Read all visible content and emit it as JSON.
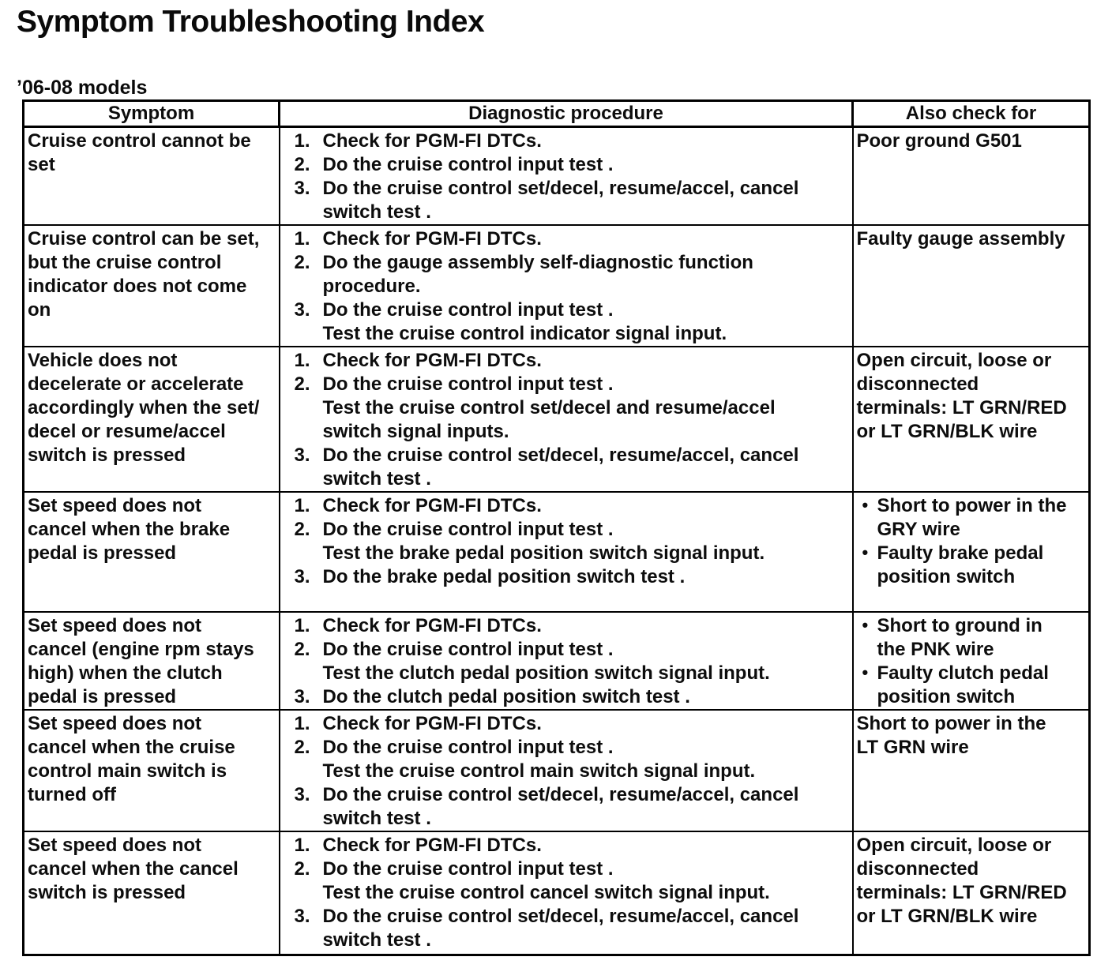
{
  "page": {
    "title": "Symptom Troubleshooting Index",
    "models_label": "’06-08 models"
  },
  "colors": {
    "ink": "#0b0b0b",
    "paper": "#ffffff"
  },
  "table": {
    "headers": {
      "symptom": "Symptom",
      "procedure": "Diagnostic procedure",
      "also": "Also check for"
    },
    "rows": [
      {
        "symptom": "Cruise control cannot be\nset",
        "steps": [
          {
            "num": "1.",
            "text": "Check for PGM-FI DTCs."
          },
          {
            "num": "2.",
            "text": "Do the cruise control input test ."
          },
          {
            "num": "3.",
            "text": "Do the cruise control set/decel, resume/accel, cancel\nswitch test ."
          }
        ],
        "also": {
          "bulleted": false,
          "items": [
            "Poor ground G501"
          ]
        }
      },
      {
        "symptom": "Cruise control can be set,\nbut the cruise control\nindicator does not come\non",
        "steps": [
          {
            "num": "1.",
            "text": "Check for PGM-FI DTCs."
          },
          {
            "num": "2.",
            "text": "Do the gauge assembly self-diagnostic function\nprocedure."
          },
          {
            "num": "3.",
            "text": "Do the cruise control input test .\nTest the cruise control indicator signal input."
          }
        ],
        "also": {
          "bulleted": false,
          "items": [
            "Faulty gauge assembly"
          ]
        }
      },
      {
        "symptom": "Vehicle does not\ndecelerate or accelerate\naccordingly when the set/\ndecel or resume/accel\nswitch is pressed",
        "steps": [
          {
            "num": "1.",
            "text": "Check for PGM-FI DTCs."
          },
          {
            "num": "2.",
            "text": "Do the cruise control input test .\nTest the cruise control set/decel and resume/accel\nswitch signal inputs."
          },
          {
            "num": "3.",
            "text": "Do the cruise control set/decel, resume/accel, cancel\nswitch test ."
          }
        ],
        "also": {
          "bulleted": false,
          "items": [
            "Open circuit, loose or\ndisconnected\nterminals: LT GRN/RED\nor LT GRN/BLK wire"
          ]
        }
      },
      {
        "symptom": "Set speed does not\ncancel when the brake\npedal is pressed",
        "steps": [
          {
            "num": "1.",
            "text": "Check for PGM-FI DTCs."
          },
          {
            "num": "2.",
            "text": "Do the cruise control input test .\nTest the brake pedal position switch signal input."
          },
          {
            "num": "3.",
            "text": "Do the brake pedal position switch test ."
          }
        ],
        "also": {
          "bulleted": true,
          "items": [
            "Short to power in the\nGRY wire",
            "Faulty brake pedal\nposition switch"
          ]
        }
      },
      {
        "symptom": "Set speed does not\ncancel (engine rpm stays\nhigh) when the clutch\npedal is pressed",
        "steps": [
          {
            "num": "1.",
            "text": "Check for PGM-FI DTCs."
          },
          {
            "num": "2.",
            "text": "Do the cruise control input test .\nTest the clutch pedal position switch signal input."
          },
          {
            "num": "3.",
            "text": "Do the clutch pedal position switch test ."
          }
        ],
        "also": {
          "bulleted": true,
          "items": [
            "Short to ground in\nthe PNK wire",
            "Faulty clutch pedal\nposition switch"
          ]
        }
      },
      {
        "symptom": "Set speed does not\ncancel when the cruise\ncontrol main switch is\nturned off",
        "steps": [
          {
            "num": "1.",
            "text": "Check for PGM-FI DTCs."
          },
          {
            "num": "2.",
            "text": "Do the cruise control input test .\nTest the cruise control main switch signal input."
          },
          {
            "num": "3.",
            "text": "Do the cruise control set/decel, resume/accel, cancel\nswitch test ."
          }
        ],
        "also": {
          "bulleted": false,
          "items": [
            "Short to power in the\nLT GRN wire"
          ]
        }
      },
      {
        "symptom": "Set speed does not\ncancel when the cancel\nswitch is pressed",
        "steps": [
          {
            "num": "1.",
            "text": "Check for PGM-FI DTCs."
          },
          {
            "num": "2.",
            "text": "Do the cruise control input test .\nTest the cruise control cancel switch signal input."
          },
          {
            "num": "3.",
            "text": "Do the cruise control set/decel, resume/accel, cancel\nswitch test ."
          }
        ],
        "also": {
          "bulleted": false,
          "items": [
            "Open circuit, loose or\ndisconnected\nterminals: LT GRN/RED\nor LT GRN/BLK wire"
          ]
        }
      }
    ]
  }
}
